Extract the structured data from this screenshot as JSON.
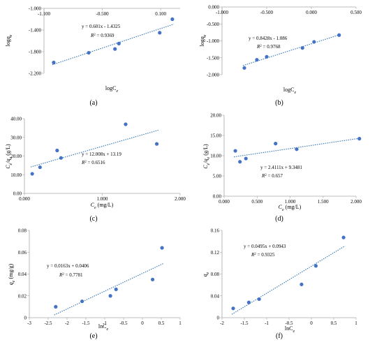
{
  "colors": {
    "point": "#4472c4",
    "trend": "#2e75b6",
    "axis": "#a6a6a6",
    "text": "#000000"
  },
  "chart_data": [
    {
      "type": "scatter",
      "label": "(a)",
      "xlabel_base": "logC",
      "xlabel_sub": "e",
      "ylabel_base": "logq",
      "ylabel_sub": "e",
      "xlim": [
        -1.1,
        0.3
      ],
      "ylim": [
        -2.2,
        -1.0
      ],
      "x_ticks": [
        -1.1,
        -0.5,
        0.1
      ],
      "x_tick_labels": [
        "-1.100",
        "-0.500",
        "0.100"
      ],
      "y_ticks": [
        -2.2,
        -1.8,
        -1.4,
        -1.0
      ],
      "y_tick_labels": [
        "-2.200",
        "-1.800",
        "-1.400",
        "-1.000"
      ],
      "x": [
        -1.0,
        -0.64,
        -0.37,
        -0.33,
        0.09,
        0.22
      ],
      "y": [
        -2.0,
        -1.82,
        -1.75,
        -1.65,
        -1.45,
        -1.2
      ],
      "trend": {
        "slope": 0.601,
        "intercept": -1.4325
      },
      "equation": "y = 0.601x - 1.4325",
      "r2_label": "R",
      "r2_sup": "2",
      "r2_value": " = 0.9369"
    },
    {
      "type": "scatter",
      "label": "(b)",
      "xlabel_base": "logC",
      "xlabel_sub": "e",
      "ylabel_base": "logq",
      "ylabel_sub": "e",
      "xlim": [
        -1.0,
        0.5
      ],
      "ylim": [
        -2.0,
        0.0
      ],
      "x_ticks": [
        -1.0,
        -0.5,
        0.0,
        0.5
      ],
      "x_tick_labels": [
        "-1.000",
        "-0.500",
        "0.000",
        "0.500"
      ],
      "y_ticks": [
        -2.0,
        -1.5,
        -1.0,
        -0.5,
        0.0
      ],
      "y_tick_labels": [
        "-2.000",
        "-1.500",
        "-1.000",
        "-0.500",
        "0.000"
      ],
      "x": [
        -0.75,
        -0.61,
        -0.5,
        -0.1,
        0.03,
        0.31
      ],
      "y": [
        -1.8,
        -1.56,
        -1.47,
        -1.21,
        -1.03,
        -0.83
      ],
      "trend": {
        "slope": 0.8428,
        "intercept": -1.086
      },
      "equation": "y = 0.8428x - 1.086",
      "r2_label": "R",
      "r2_sup": "2",
      "r2_value": " = 0.9768"
    },
    {
      "type": "scatter",
      "label": "(c)",
      "xlabel_base": "C",
      "xlabel_sub": "e",
      "xlabel_rest": " (mg/L)",
      "ylabel_base": "C",
      "ylabel_sub": "e",
      "ylabel_mid": "/q",
      "ylabel_sub2": "e",
      "ylabel_rest": " (g/L)",
      "xlim": [
        0,
        2.0
      ],
      "ylim": [
        0,
        40
      ],
      "x_ticks": [
        0,
        1.0,
        2.0
      ],
      "x_tick_labels": [
        "0.000",
        "1.000",
        "2.000"
      ],
      "y_ticks": [
        0,
        10,
        20,
        30,
        40
      ],
      "y_tick_labels": [
        "0.00",
        "10.00",
        "20.00",
        "30.00",
        "40.00"
      ],
      "x": [
        0.1,
        0.2,
        0.42,
        0.47,
        1.3,
        1.7
      ],
      "y": [
        10.5,
        14,
        23,
        19,
        37,
        26.5
      ],
      "trend": {
        "slope": 12.008,
        "intercept": 13.19
      },
      "equation": "y = 12.008x + 13.19",
      "r2_label": "R",
      "r2_sup": "2",
      "r2_value": " = 0.6516"
    },
    {
      "type": "scatter",
      "label": "(d)",
      "xlabel_base": "C",
      "xlabel_sub": "e",
      "xlabel_rest": " (mg/L)",
      "ylabel_base": "C",
      "ylabel_sub": "e",
      "ylabel_mid": "/q",
      "ylabel_sub2": "e",
      "ylabel_rest": " (g/L)",
      "xlim": [
        0,
        2.0
      ],
      "ylim": [
        0,
        20
      ],
      "x_ticks": [
        0,
        0.5,
        1.0,
        1.5,
        2.0
      ],
      "x_tick_labels": [
        "0.000",
        "0.500",
        "1.000",
        "1.500",
        "2.000"
      ],
      "y_ticks": [
        0,
        5,
        10,
        15,
        20
      ],
      "y_tick_labels": [
        "0.00",
        "5.00",
        "10.00",
        "15.00",
        "20.00"
      ],
      "x": [
        0.17,
        0.24,
        0.33,
        0.78,
        1.1,
        2.05
      ],
      "y": [
        11.2,
        8.5,
        9.3,
        13.0,
        11.6,
        14.2
      ],
      "trend": {
        "slope": 2.4111,
        "intercept": 9.3481
      },
      "equation": "y = 2.4111x + 9.3481",
      "r2_label": "R",
      "r2_sup": "2",
      "r2_value": " = 0.657"
    },
    {
      "type": "scatter",
      "label": "(e)",
      "xlabel_base": "lnC",
      "xlabel_sub": "e",
      "ylabel_base": "q",
      "ylabel_sub": "e",
      "ylabel_rest": " (mg/g)",
      "xlim": [
        -3,
        1
      ],
      "ylim": [
        0,
        0.08
      ],
      "x_ticks": [
        -3,
        -2.5,
        -2,
        -1.5,
        -1,
        -0.5,
        0,
        0.5,
        1
      ],
      "x_tick_labels": [
        "-3",
        "-2.5",
        "-2",
        "-1.5",
        "-1",
        "-0.5",
        "0",
        "0.5",
        "1"
      ],
      "y_ticks": [
        0,
        0.02,
        0.04,
        0.06,
        0.08
      ],
      "y_tick_labels": [
        "0",
        "0.02",
        "0.04",
        "0.06",
        "0.08"
      ],
      "x": [
        -2.3,
        -1.6,
        -0.85,
        -0.7,
        0.27,
        0.52
      ],
      "y": [
        0.01,
        0.015,
        0.02,
        0.026,
        0.035,
        0.064
      ],
      "trend": {
        "slope": 0.0163,
        "intercept": 0.0406
      },
      "equation": "y = 0.0163x + 0.0406",
      "r2_label": "R",
      "r2_sup": "2",
      "r2_value": " = 0.7781"
    },
    {
      "type": "scatter",
      "label": "(f)",
      "xlabel_base": "lnC",
      "xlabel_sub": "e",
      "ylabel_base": "q",
      "ylabel_sub": "e",
      "xlim": [
        -2,
        1
      ],
      "ylim": [
        0,
        0.16
      ],
      "x_ticks": [
        -2,
        -1.5,
        -1,
        -0.5,
        0,
        0.5,
        1
      ],
      "x_tick_labels": [
        "-2",
        "-1.5",
        "-1",
        "-0.5",
        "0",
        "0.5",
        "1"
      ],
      "y_ticks": [
        0,
        0.04,
        0.08,
        0.12,
        0.16
      ],
      "y_tick_labels": [
        "0",
        "0.04",
        "0.08",
        "0.12",
        "0.16"
      ],
      "x": [
        -1.75,
        -1.4,
        -1.17,
        -0.22,
        0.1,
        0.72
      ],
      "y": [
        0.017,
        0.028,
        0.034,
        0.061,
        0.095,
        0.147
      ],
      "trend": {
        "slope": 0.0495,
        "intercept": 0.0943
      },
      "equation": "y = 0.0495x + 0.0943",
      "r2_label": "R",
      "r2_sup": "2",
      "r2_value": " = 0.9325"
    }
  ]
}
